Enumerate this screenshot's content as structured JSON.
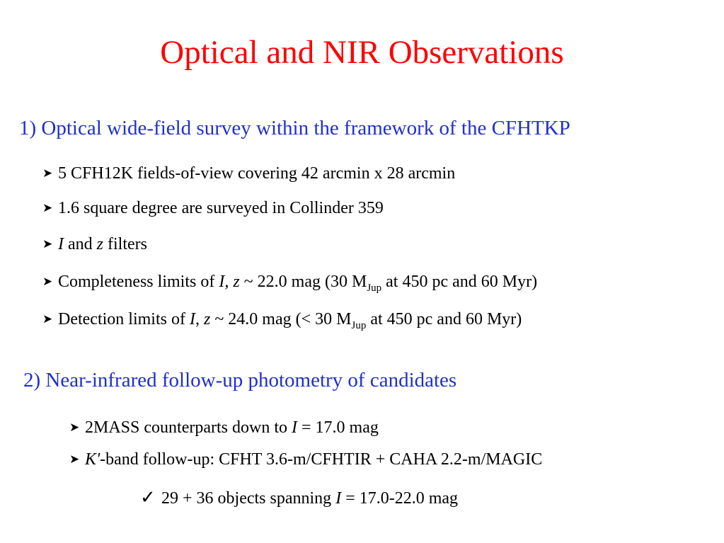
{
  "slide": {
    "title": "Optical and NIR Observations",
    "section1": {
      "heading": "1) Optical wide-field survey within the framework of the CFHTKP",
      "bullets": {
        "b1": {
          "text": "5 CFH12K fields-of-view covering 42 arcmin x 28 arcmin"
        },
        "b2": {
          "text": "1.6 square degree are surveyed in Collinder 359"
        },
        "b3": {
          "i": "I",
          "and": " and ",
          "z": "z",
          "rest": " filters"
        },
        "b4": {
          "pre": "Completeness limits of ",
          "i": "I",
          "comma": ", ",
          "z": "z",
          "mid": " ~ 22.0 mag (30 M",
          "sub": "Jup",
          "post": " at 450 pc and 60 Myr)"
        },
        "b5": {
          "pre": "Detection limits of ",
          "i": "I",
          "comma": ", ",
          "z": "z",
          "mid": " ~ 24.0 mag (< 30 M",
          "sub": "Jup",
          "post": " at 450 pc and 60 Myr)"
        }
      }
    },
    "section2": {
      "heading": "2) Near-infrared follow-up photometry of candidates",
      "bullets": {
        "b1": {
          "pre": "2MASS counterparts down to ",
          "i": "I",
          "post": " = 17.0 mag"
        },
        "b2": {
          "k": "K'",
          "post": "-band follow-up: CFHT 3.6-m/CFHTIR + CAHA 2.2-m/MAGIC"
        },
        "check": {
          "pre": "29 + 36 objects spanning ",
          "i": "I",
          "post": " = 17.0-22.0 mag"
        }
      }
    },
    "icons": {
      "bullet": "arrowhead-bullet-icon",
      "check": "checkmark-icon"
    },
    "colors": {
      "title": "#ff0000",
      "heading": "#1f2fd0",
      "text": "#000000"
    }
  }
}
